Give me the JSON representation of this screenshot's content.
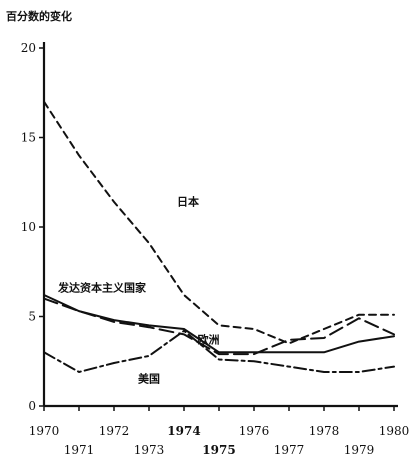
{
  "chart_data": {
    "type": "line",
    "title": "百分数的变化",
    "xlabel": "",
    "ylabel": "",
    "ylim": [
      0,
      20
    ],
    "xlim": [
      1970,
      1980
    ],
    "yticks": [
      0,
      5,
      10,
      15,
      20
    ],
    "x": [
      1970,
      1971,
      1972,
      1973,
      1974,
      1975,
      1976,
      1977,
      1978,
      1979,
      1980
    ],
    "x_tick_labels": [
      "1970",
      "1971",
      "1972",
      "1973",
      "1974",
      "1975",
      "1976",
      "1977",
      "1978",
      "1979",
      "1980"
    ],
    "grid": false,
    "series": [
      {
        "name": "日本",
        "values": [
          17,
          14,
          11.4,
          9.1,
          6.2,
          4.5,
          4.3,
          3.5,
          4.3,
          5.1,
          5.1
        ]
      },
      {
        "name": "发达资本主义国家",
        "values": [
          6.0,
          5.3,
          4.7,
          4.4,
          4.0,
          2.9,
          2.9,
          3.7,
          3.8,
          4.9,
          4.0
        ]
      },
      {
        "name": "欧洲",
        "values": [
          6.2,
          5.3,
          4.8,
          4.5,
          4.3,
          3.0,
          3.0,
          3.0,
          3.0,
          3.6,
          3.9
        ]
      },
      {
        "name": "美国",
        "values": [
          3.0,
          1.9,
          2.4,
          2.8,
          4.2,
          2.6,
          2.5,
          2.2,
          1.9,
          1.9,
          2.2
        ]
      }
    ]
  }
}
